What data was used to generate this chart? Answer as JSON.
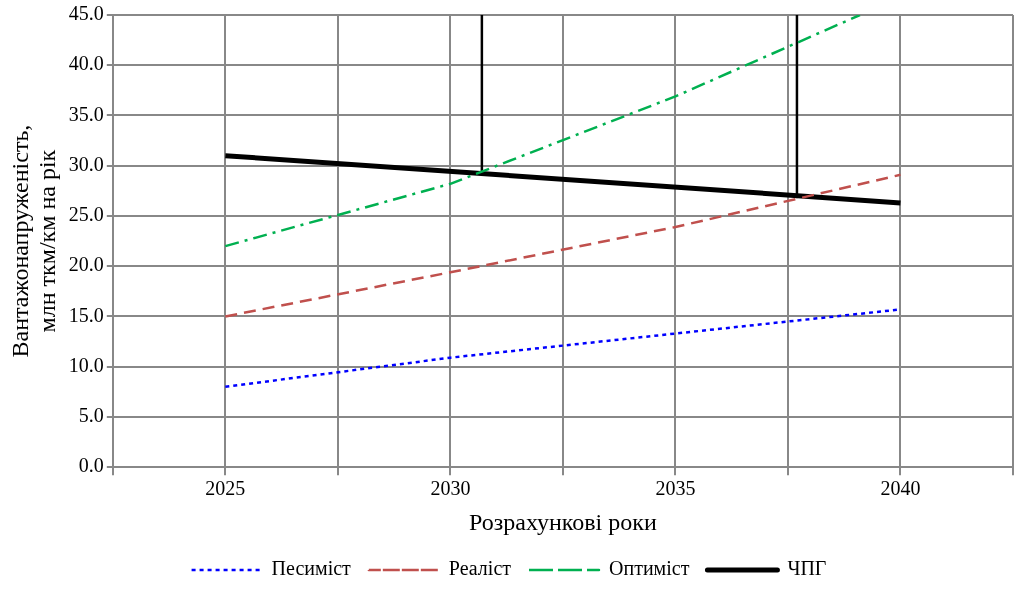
{
  "chart_data": {
    "type": "line",
    "xlabel": "Розрахункові роки",
    "ylabel": "Вантажонапруженість,\nмлн ткм/км на рік",
    "xlim": [
      2022.5,
      2042.5
    ],
    "xticks": [
      {
        "value": 2022.5,
        "label": null
      },
      2025,
      {
        "value": 2027.5,
        "label": null
      },
      2030,
      {
        "value": 2032.5,
        "label": null
      },
      2035,
      {
        "value": 2037.5,
        "label": null
      },
      2040,
      {
        "value": 2042.5,
        "label": null
      }
    ],
    "ylim": [
      0,
      45
    ],
    "yticks": [
      {
        "value": 0,
        "label": "0.0"
      },
      {
        "value": 5,
        "label": "5.0"
      },
      {
        "value": 10,
        "label": "10.0"
      },
      {
        "value": 15,
        "label": "15.0"
      },
      {
        "value": 20,
        "label": "20.0"
      },
      {
        "value": 25,
        "label": "25.0"
      },
      {
        "value": 30,
        "label": "30.0"
      },
      {
        "value": 35,
        "label": "35.0"
      },
      {
        "value": 40,
        "label": "40.0"
      },
      {
        "value": 45,
        "label": "45.0"
      }
    ],
    "grid": true,
    "legend": "bottom",
    "marker": "none",
    "series": [
      {
        "name": "Песиміст",
        "color": "#0000ff",
        "line_style": "dotted",
        "x": [
          2025,
          2030,
          2035,
          2040
        ],
        "values": [
          8.0,
          10.9,
          13.3,
          15.7
        ]
      },
      {
        "name": "Реаліст",
        "color": "#c0504d",
        "line_style": "dashed",
        "x": [
          2025,
          2030,
          2035,
          2040
        ],
        "values": [
          15.0,
          19.4,
          23.9,
          29.1
        ]
      },
      {
        "name": "Оптиміст",
        "color": "#00b050",
        "line_style": "dashdot",
        "x": [
          2025,
          2030,
          2035,
          2039.1
        ],
        "values": [
          22.0,
          28.2,
          36.9,
          45.0
        ]
      },
      {
        "name": "ЧПГ",
        "color": "#000000",
        "line_style": "solid",
        "x": [
          2025,
          2040
        ],
        "values": [
          31.0,
          26.3
        ]
      },
      {
        "color": "#000000",
        "line_style": "solid",
        "x": [
          2030.7,
          2030.7
        ],
        "values": [
          45.0,
          29.2
        ]
      },
      {
        "color": "#000000",
        "line_style": "solid",
        "x": [
          2037.7,
          2037.7
        ],
        "values": [
          45.0,
          26.9
        ]
      }
    ]
  }
}
